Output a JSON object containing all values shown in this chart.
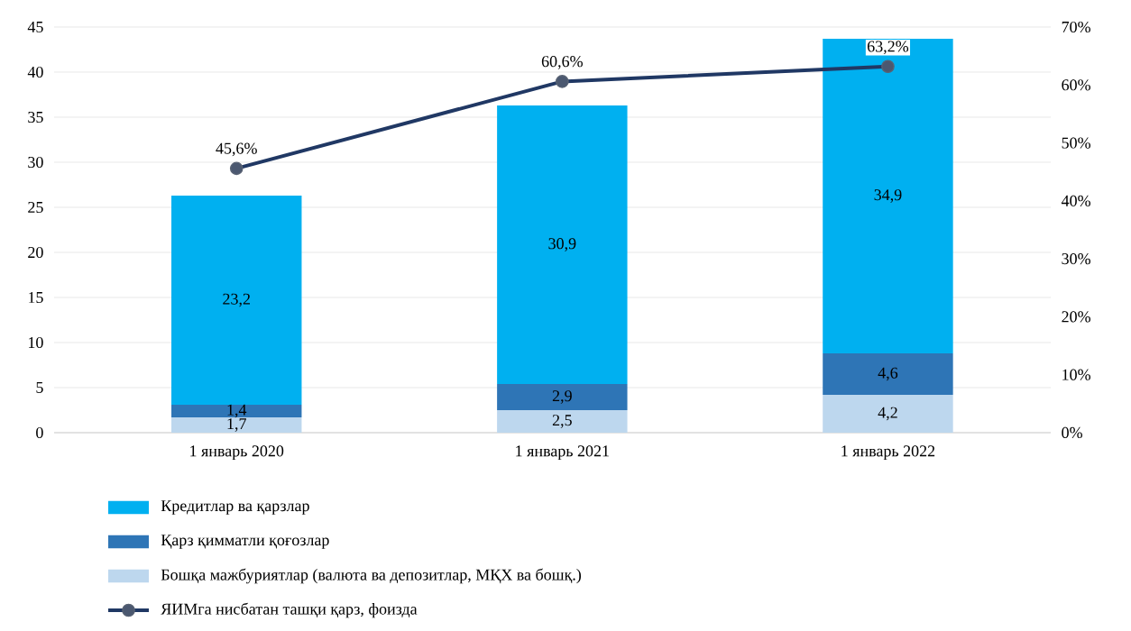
{
  "chart_data": {
    "type": "bar",
    "stacked": true,
    "categories": [
      "1 январь 2020",
      "1 январь 2021",
      "1 январь 2022"
    ],
    "series": [
      {
        "name": "Бошқа мажбуриятлар (валюта ва депозитлар, МҚХ ва бошқ.)",
        "color": "#bdd7ee",
        "values": [
          1.7,
          2.5,
          4.2
        ],
        "value_labels": [
          "1,7",
          "2,5",
          "4,2"
        ]
      },
      {
        "name": "Қарз қимматли қоғозлар",
        "color": "#2e75b6",
        "values": [
          1.4,
          2.9,
          4.6
        ],
        "value_labels": [
          "1,4",
          "2,9",
          "4,6"
        ]
      },
      {
        "name": "Кредитлар ва қарзлар",
        "color": "#00b0f0",
        "values": [
          23.2,
          30.9,
          34.9
        ],
        "value_labels": [
          "23,2",
          "30,9",
          "34,9"
        ]
      },
      {
        "name": "ЯИМга нисбатан ташқи қарз, фоизда",
        "type": "line",
        "axis": "y2",
        "color": "#203864",
        "marker": "circle",
        "values": [
          45.6,
          60.6,
          63.2
        ],
        "value_labels": [
          "45,6%",
          "60,6%",
          "63,2%"
        ]
      }
    ],
    "ylim": [
      0,
      45
    ],
    "yticks": [
      0,
      5,
      10,
      15,
      20,
      25,
      30,
      35,
      40,
      45
    ],
    "y2lim": [
      0,
      70
    ],
    "y2ticks": [
      {
        "value": 0,
        "label": "0%"
      },
      {
        "value": 10,
        "label": "10%"
      },
      {
        "value": 20,
        "label": "20%"
      },
      {
        "value": 30,
        "label": "30%"
      },
      {
        "value": 40,
        "label": "40%"
      },
      {
        "value": 50,
        "label": "50%"
      },
      {
        "value": 60,
        "label": "60%"
      },
      {
        "value": 70,
        "label": "70%"
      }
    ],
    "grid": "y",
    "legend": "bottom"
  }
}
